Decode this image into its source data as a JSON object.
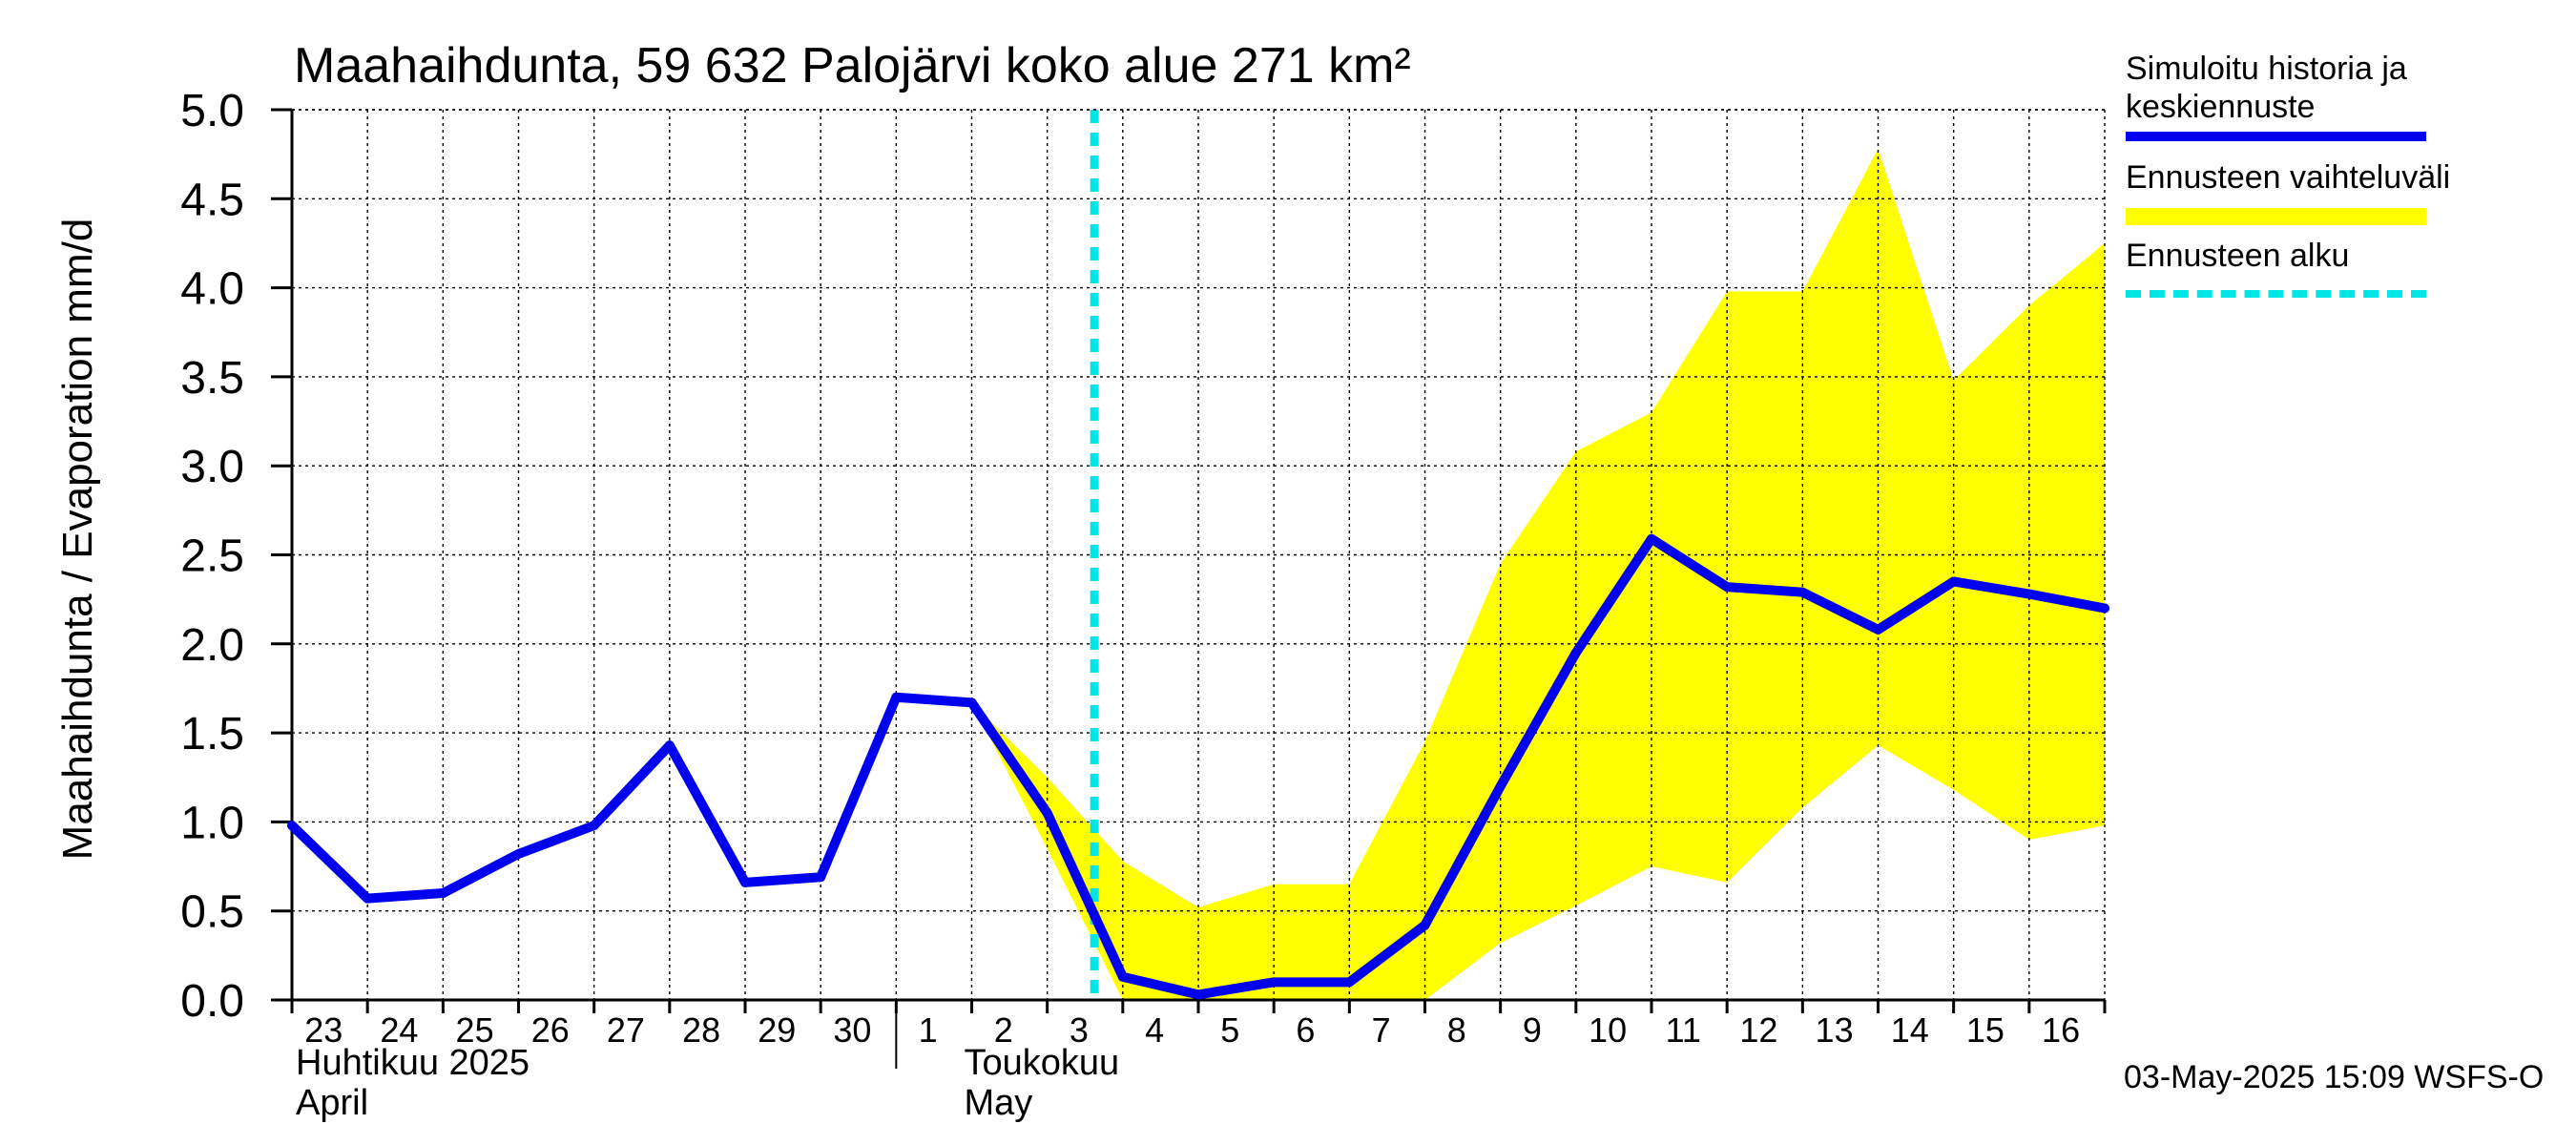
{
  "chart_data": {
    "type": "line",
    "title": "Maahaihdunta, 59 632 Palojärvi koko alue 271 km²",
    "ylabel": "Maahaihdunta / Evaporation   mm/d",
    "ylim": [
      0,
      5
    ],
    "yticks": [
      "0.0",
      "0.5",
      "1.0",
      "1.5",
      "2.0",
      "2.5",
      "3.0",
      "3.5",
      "4.0",
      "4.5",
      "5.0"
    ],
    "x_day_labels": [
      "23",
      "24",
      "25",
      "26",
      "27",
      "28",
      "29",
      "30",
      "1",
      "2",
      "3",
      "4",
      "5",
      "6",
      "7",
      "8",
      "9",
      "10",
      "11",
      "12",
      "13",
      "14",
      "15",
      "16"
    ],
    "month_labels": [
      {
        "fi": "Huhtikuu  2025",
        "en": "April"
      },
      {
        "fi": "Toukokuu",
        "en": "May"
      }
    ],
    "x_dates": [
      "2025-04-23",
      "2025-04-24",
      "2025-04-25",
      "2025-04-26",
      "2025-04-27",
      "2025-04-28",
      "2025-04-29",
      "2025-04-30",
      "2025-05-01",
      "2025-05-02",
      "2025-05-03",
      "2025-05-04",
      "2025-05-05",
      "2025-05-06",
      "2025-05-07",
      "2025-05-08",
      "2025-05-09",
      "2025-05-10",
      "2025-05-11",
      "2025-05-12",
      "2025-05-13",
      "2025-05-14",
      "2025-05-15",
      "2025-05-16",
      "2025-05-17"
    ],
    "series": [
      {
        "name": "Simuloitu historia ja keskiennuste",
        "color": "#0000ee",
        "values": [
          0.98,
          0.57,
          0.6,
          0.82,
          0.98,
          1.43,
          0.66,
          0.69,
          1.7,
          1.67,
          1.05,
          0.13,
          0.03,
          0.1,
          0.1,
          0.42,
          1.2,
          1.95,
          2.59,
          2.32,
          2.29,
          2.08,
          2.35,
          2.28,
          2.2
        ]
      }
    ],
    "band": {
      "name": "Ennusteen vaihteluväli",
      "color": "#ffff00",
      "start_index": 9,
      "upper": [
        1.67,
        1.25,
        0.78,
        0.52,
        0.65,
        0.65,
        1.45,
        2.45,
        3.08,
        3.3,
        3.98,
        3.98,
        4.78,
        3.48,
        3.9,
        4.25
      ],
      "lower": [
        1.67,
        0.85,
        0.0,
        0.0,
        0.0,
        0.0,
        0.0,
        0.32,
        0.53,
        0.75,
        0.66,
        1.08,
        1.43,
        1.18,
        0.9,
        0.98
      ]
    },
    "forecast_start": {
      "name": "Ennusteen alku",
      "color": "#00e5e5",
      "date": "2025-05-03",
      "hour": 15
    },
    "grid": true,
    "legend_position": "right",
    "legend": [
      {
        "label": "Simuloitu historia ja",
        "label2": "keskiennuste",
        "color": "#0000ee",
        "style": "solid"
      },
      {
        "label": "Ennusteen vaihteluväli",
        "color": "#ffff00",
        "style": "solid"
      },
      {
        "label": "Ennusteen alku",
        "color": "#00e5e5",
        "style": "dashed"
      }
    ]
  },
  "footer": "03-May-2025 15:09 WSFS-O"
}
